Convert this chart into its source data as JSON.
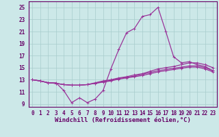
{
  "title": "",
  "xlabel": "Windchill (Refroidissement éolien,°C)",
  "ylabel": "",
  "bg_color": "#cce8e8",
  "grid_color": "#a8cccc",
  "line_color": "#993399",
  "x_ticks": [
    0,
    1,
    2,
    3,
    4,
    5,
    6,
    7,
    8,
    9,
    10,
    11,
    12,
    13,
    14,
    15,
    16,
    17,
    18,
    19,
    20,
    21,
    22,
    23
  ],
  "y_ticks": [
    9,
    11,
    13,
    15,
    17,
    19,
    21,
    23,
    25
  ],
  "xlim": [
    -0.5,
    23.5
  ],
  "ylim": [
    8.5,
    26.0
  ],
  "curves": [
    {
      "x": [
        0,
        1,
        2,
        3,
        4,
        5,
        6,
        7,
        8,
        9,
        10,
        11,
        12,
        13,
        14,
        15,
        16,
        17,
        18,
        19,
        20,
        21,
        22,
        23
      ],
      "y": [
        13.0,
        12.8,
        12.5,
        12.5,
        11.2,
        9.2,
        10.0,
        9.2,
        9.8,
        11.2,
        14.8,
        18.0,
        20.8,
        21.5,
        23.5,
        23.8,
        25.0,
        21.0,
        16.8,
        15.8,
        16.0,
        15.5,
        15.2,
        14.5
      ]
    },
    {
      "x": [
        0,
        1,
        2,
        3,
        4,
        5,
        6,
        7,
        8,
        9,
        10,
        11,
        12,
        13,
        14,
        15,
        16,
        17,
        18,
        19,
        20,
        21,
        22,
        23
      ],
      "y": [
        13.0,
        12.8,
        12.5,
        12.4,
        12.2,
        12.1,
        12.1,
        12.2,
        12.5,
        12.8,
        13.0,
        13.3,
        13.5,
        13.8,
        14.0,
        14.4,
        14.8,
        15.0,
        15.2,
        15.5,
        15.8,
        15.8,
        15.5,
        15.0
      ]
    },
    {
      "x": [
        0,
        1,
        2,
        3,
        4,
        5,
        6,
        7,
        8,
        9,
        10,
        11,
        12,
        13,
        14,
        15,
        16,
        17,
        18,
        19,
        20,
        21,
        22,
        23
      ],
      "y": [
        13.0,
        12.8,
        12.5,
        12.4,
        12.2,
        12.1,
        12.1,
        12.2,
        12.4,
        12.7,
        12.9,
        13.2,
        13.4,
        13.6,
        13.9,
        14.2,
        14.5,
        14.7,
        14.9,
        15.1,
        15.3,
        15.3,
        15.0,
        14.5
      ]
    },
    {
      "x": [
        0,
        1,
        2,
        3,
        4,
        5,
        6,
        7,
        8,
        9,
        10,
        11,
        12,
        13,
        14,
        15,
        16,
        17,
        18,
        19,
        20,
        21,
        22,
        23
      ],
      "y": [
        13.0,
        12.8,
        12.5,
        12.4,
        12.2,
        12.1,
        12.1,
        12.2,
        12.4,
        12.6,
        12.8,
        13.1,
        13.3,
        13.5,
        13.7,
        14.0,
        14.3,
        14.5,
        14.7,
        14.9,
        15.1,
        15.1,
        14.8,
        14.3
      ]
    }
  ],
  "marker": "+",
  "markersize": 3,
  "linewidth": 0.9,
  "tick_fontsize": 5.5,
  "label_fontsize": 6.5,
  "font_color": "#660066"
}
